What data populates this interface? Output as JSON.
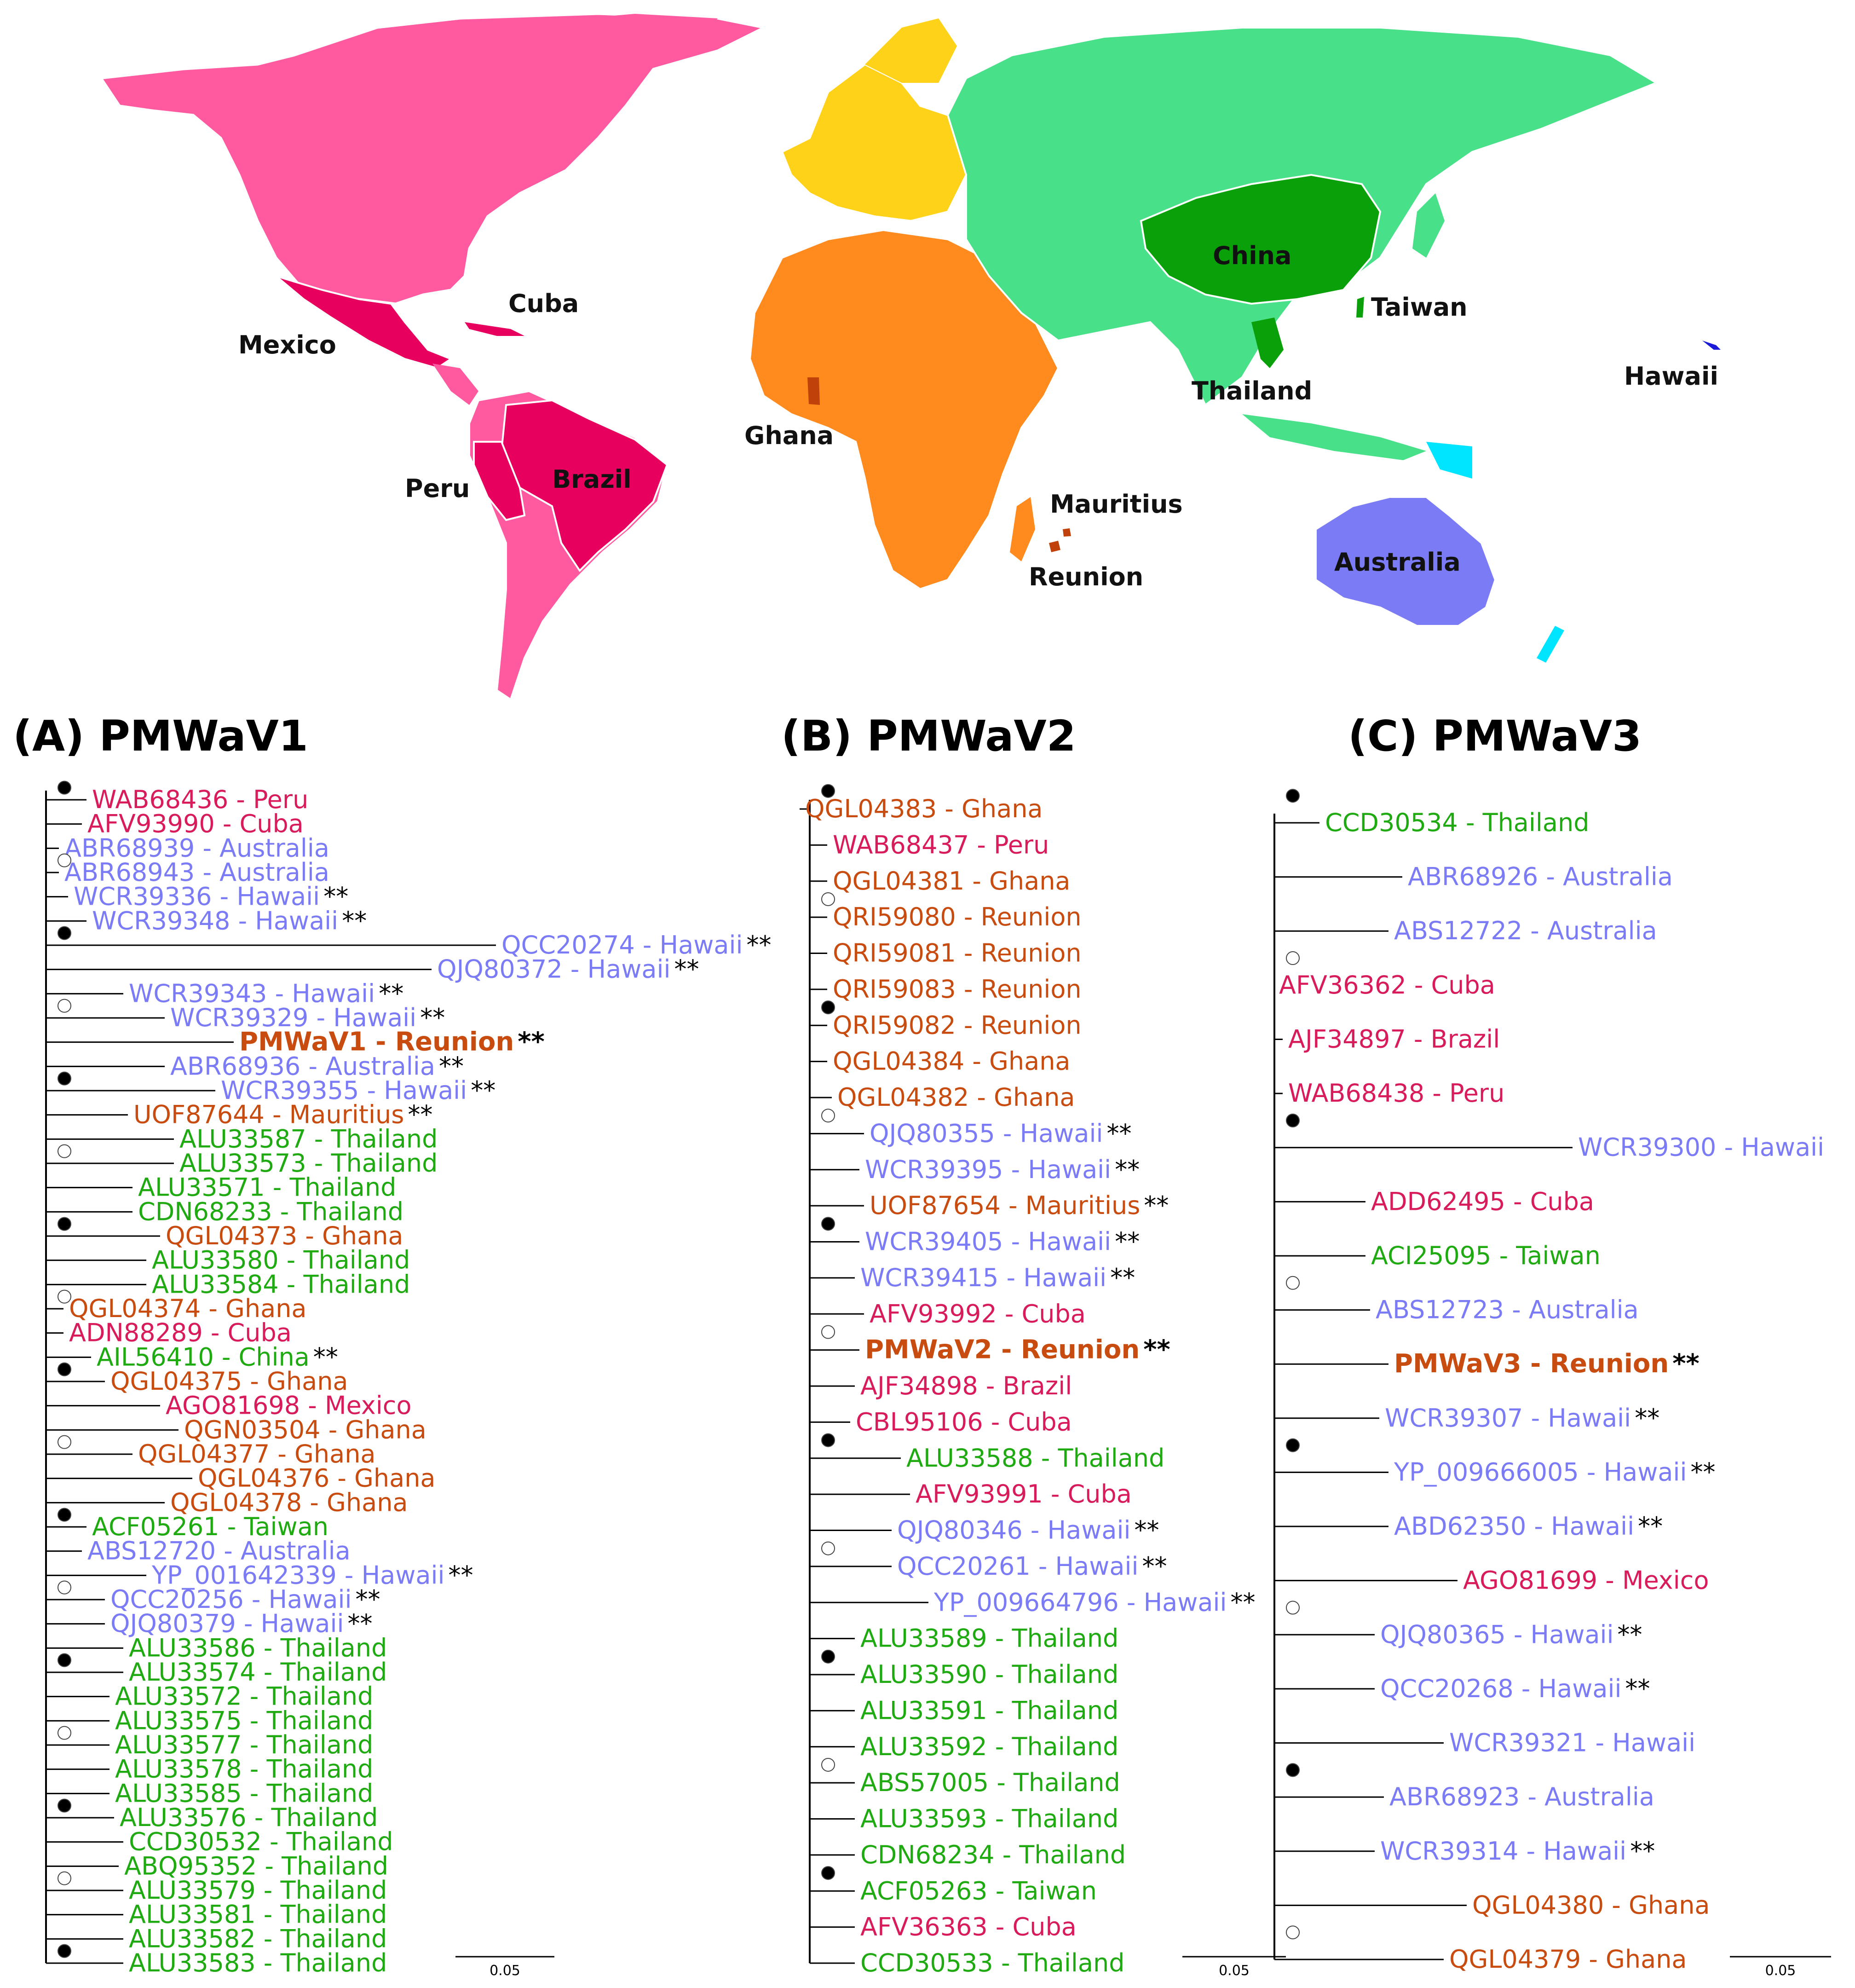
{
  "colors": {
    "Peru": "#d81b5a",
    "Cuba": "#d81b5a",
    "Mexico": "#d81b5a",
    "Brazil": "#d81b5a",
    "Australia": "#7b7cf5",
    "Hawaii": "#7b7cf5",
    "Ghana": "#c84b0f",
    "Mauritius": "#c84b0f",
    "Reunion": "#c84b0f",
    "Thailand": "#1faa12",
    "China": "#1faa12",
    "Taiwan": "#1faa12",
    "map_americas": "#ff5aa0",
    "map_highlight_red": "#e8005e",
    "map_europe": "#ffd21a",
    "map_africa": "#ff8a1e",
    "map_asia": "#48e088",
    "map_highlight_green": "#0aa00a",
    "map_australia": "#7b7cf5",
    "map_islands_cyan": "#00e5ff",
    "map_reunion": "#c0420a"
  },
  "map_labels": {
    "cuba": "Cuba",
    "mexico": "Mexico",
    "peru": "Peru",
    "brazil": "Brazil",
    "ghana": "Ghana",
    "mauritius": "Mauritius",
    "reunion": "Reunion",
    "china": "China",
    "taiwan": "Taiwan",
    "thailand": "Thailand",
    "hawaii": "Hawaii",
    "australia": "Australia"
  },
  "panels": [
    {
      "title": "(A) PMWaV1",
      "scale_label": "0.05",
      "leaves": [
        {
          "label": "WAB68436 - Peru",
          "region": "Peru",
          "mark": "",
          "bold": false
        },
        {
          "label": "AFV93990 - Cuba",
          "region": "Cuba",
          "mark": "",
          "bold": false
        },
        {
          "label": "ABR68939 - Australia",
          "region": "Australia",
          "mark": "",
          "bold": false
        },
        {
          "label": "ABR68943 - Australia",
          "region": "Australia",
          "mark": "",
          "bold": false
        },
        {
          "label": "WCR39336 - Hawaii",
          "region": "Hawaii",
          "mark": "**",
          "bold": false
        },
        {
          "label": "WCR39348 - Hawaii",
          "region": "Hawaii",
          "mark": "**",
          "bold": false
        },
        {
          "label": "QCC20274 - Hawaii",
          "region": "Hawaii",
          "mark": "**",
          "bold": false
        },
        {
          "label": "QJQ80372 - Hawaii",
          "region": "Hawaii",
          "mark": "**",
          "bold": false
        },
        {
          "label": "WCR39343 - Hawaii",
          "region": "Hawaii",
          "mark": "**",
          "bold": false
        },
        {
          "label": "WCR39329 - Hawaii",
          "region": "Hawaii",
          "mark": "**",
          "bold": false
        },
        {
          "label": "PMWaV1 - Reunion",
          "region": "Reunion",
          "mark": "**",
          "bold": true
        },
        {
          "label": "ABR68936 - Australia",
          "region": "Australia",
          "mark": "**",
          "bold": false
        },
        {
          "label": "WCR39355 - Hawaii",
          "region": "Hawaii",
          "mark": "**",
          "bold": false
        },
        {
          "label": "UOF87644 - Mauritius",
          "region": "Mauritius",
          "mark": "**",
          "bold": false
        },
        {
          "label": "ALU33587 - Thailand",
          "region": "Thailand",
          "mark": "",
          "bold": false
        },
        {
          "label": "ALU33573 - Thailand",
          "region": "Thailand",
          "mark": "",
          "bold": false
        },
        {
          "label": "ALU33571 - Thailand",
          "region": "Thailand",
          "mark": "",
          "bold": false
        },
        {
          "label": "CDN68233 - Thailand",
          "region": "Thailand",
          "mark": "",
          "bold": false
        },
        {
          "label": "QGL04373 - Ghana",
          "region": "Ghana",
          "mark": "",
          "bold": false
        },
        {
          "label": "ALU33580 - Thailand",
          "region": "Thailand",
          "mark": "",
          "bold": false
        },
        {
          "label": "ALU33584 - Thailand",
          "region": "Thailand",
          "mark": "",
          "bold": false
        },
        {
          "label": "QGL04374 - Ghana",
          "region": "Ghana",
          "mark": "",
          "bold": false
        },
        {
          "label": "ADN88289 - Cuba",
          "region": "Cuba",
          "mark": "",
          "bold": false
        },
        {
          "label": "AIL56410 - China",
          "region": "China",
          "mark": "**",
          "bold": false
        },
        {
          "label": "QGL04375 - Ghana",
          "region": "Ghana",
          "mark": "",
          "bold": false
        },
        {
          "label": "AGO81698 - Mexico",
          "region": "Mexico",
          "mark": "",
          "bold": false
        },
        {
          "label": "QGN03504 - Ghana",
          "region": "Ghana",
          "mark": "",
          "bold": false
        },
        {
          "label": "QGL04377 - Ghana",
          "region": "Ghana",
          "mark": "",
          "bold": false
        },
        {
          "label": "QGL04376 - Ghana",
          "region": "Ghana",
          "mark": "",
          "bold": false
        },
        {
          "label": "QGL04378 - Ghana",
          "region": "Ghana",
          "mark": "",
          "bold": false
        },
        {
          "label": "ACF05261 - Taiwan",
          "region": "Taiwan",
          "mark": "",
          "bold": false
        },
        {
          "label": "ABS12720 - Australia",
          "region": "Australia",
          "mark": "",
          "bold": false
        },
        {
          "label": "YP_001642339 - Hawaii",
          "region": "Hawaii",
          "mark": "**",
          "bold": false
        },
        {
          "label": "QCC20256 - Hawaii",
          "region": "Hawaii",
          "mark": "**",
          "bold": false
        },
        {
          "label": "QJQ80379 - Hawaii",
          "region": "Hawaii",
          "mark": "**",
          "bold": false
        },
        {
          "label": "ALU33586 - Thailand",
          "region": "Thailand",
          "mark": "",
          "bold": false
        },
        {
          "label": "ALU33574 - Thailand",
          "region": "Thailand",
          "mark": "",
          "bold": false
        },
        {
          "label": "ALU33572 - Thailand",
          "region": "Thailand",
          "mark": "",
          "bold": false
        },
        {
          "label": "ALU33575 - Thailand",
          "region": "Thailand",
          "mark": "",
          "bold": false
        },
        {
          "label": "ALU33577 - Thailand",
          "region": "Thailand",
          "mark": "",
          "bold": false
        },
        {
          "label": "ALU33578 - Thailand",
          "region": "Thailand",
          "mark": "",
          "bold": false
        },
        {
          "label": "ALU33585 - Thailand",
          "region": "Thailand",
          "mark": "",
          "bold": false
        },
        {
          "label": "ALU33576 - Thailand",
          "region": "Thailand",
          "mark": "",
          "bold": false
        },
        {
          "label": "CCD30532 - Thailand",
          "region": "Thailand",
          "mark": "",
          "bold": false
        },
        {
          "label": "ABQ95352 - Thailand",
          "region": "Thailand",
          "mark": "",
          "bold": false
        },
        {
          "label": "ALU33579 - Thailand",
          "region": "Thailand",
          "mark": "",
          "bold": false
        },
        {
          "label": "ALU33581 - Thailand",
          "region": "Thailand",
          "mark": "",
          "bold": false
        },
        {
          "label": "ALU33582 - Thailand",
          "region": "Thailand",
          "mark": "",
          "bold": false
        },
        {
          "label": "ALU33583 - Thailand",
          "region": "Thailand",
          "mark": "",
          "bold": false
        }
      ]
    },
    {
      "title": "(B) PMWaV2",
      "scale_label": "0.05",
      "leaves": [
        {
          "label": "QGL04383 - Ghana",
          "region": "Ghana",
          "mark": "",
          "bold": false
        },
        {
          "label": "WAB68437 - Peru",
          "region": "Peru",
          "mark": "",
          "bold": false
        },
        {
          "label": "QGL04381 - Ghana",
          "region": "Ghana",
          "mark": "",
          "bold": false
        },
        {
          "label": "QRI59080 - Reunion",
          "region": "Reunion",
          "mark": "",
          "bold": false
        },
        {
          "label": "QRI59081 - Reunion",
          "region": "Reunion",
          "mark": "",
          "bold": false
        },
        {
          "label": "QRI59083 - Reunion",
          "region": "Reunion",
          "mark": "",
          "bold": false
        },
        {
          "label": "QRI59082 - Reunion",
          "region": "Reunion",
          "mark": "",
          "bold": false
        },
        {
          "label": "QGL04384 - Ghana",
          "region": "Ghana",
          "mark": "",
          "bold": false
        },
        {
          "label": "QGL04382 - Ghana",
          "region": "Ghana",
          "mark": "",
          "bold": false
        },
        {
          "label": "QJQ80355 - Hawaii",
          "region": "Hawaii",
          "mark": "**",
          "bold": false
        },
        {
          "label": "WCR39395 - Hawaii",
          "region": "Hawaii",
          "mark": "**",
          "bold": false
        },
        {
          "label": "UOF87654 - Mauritius",
          "region": "Mauritius",
          "mark": "**",
          "bold": false
        },
        {
          "label": "WCR39405 - Hawaii",
          "region": "Hawaii",
          "mark": "**",
          "bold": false
        },
        {
          "label": "WCR39415 - Hawaii",
          "region": "Hawaii",
          "mark": "**",
          "bold": false
        },
        {
          "label": "AFV93992 - Cuba",
          "region": "Cuba",
          "mark": "",
          "bold": false
        },
        {
          "label": "PMWaV2 - Reunion",
          "region": "Reunion",
          "mark": "**",
          "bold": true
        },
        {
          "label": "AJF34898 - Brazil",
          "region": "Brazil",
          "mark": "",
          "bold": false
        },
        {
          "label": "CBL95106 - Cuba",
          "region": "Cuba",
          "mark": "",
          "bold": false
        },
        {
          "label": "ALU33588 - Thailand",
          "region": "Thailand",
          "mark": "",
          "bold": false
        },
        {
          "label": "AFV93991 - Cuba",
          "region": "Cuba",
          "mark": "",
          "bold": false
        },
        {
          "label": "QJQ80346 - Hawaii",
          "region": "Hawaii",
          "mark": "**",
          "bold": false
        },
        {
          "label": "QCC20261 - Hawaii",
          "region": "Hawaii",
          "mark": "**",
          "bold": false
        },
        {
          "label": "YP_009664796 - Hawaii",
          "region": "Hawaii",
          "mark": "**",
          "bold": false
        },
        {
          "label": "ALU33589 - Thailand",
          "region": "Thailand",
          "mark": "",
          "bold": false
        },
        {
          "label": "ALU33590 - Thailand",
          "region": "Thailand",
          "mark": "",
          "bold": false
        },
        {
          "label": "ALU33591 - Thailand",
          "region": "Thailand",
          "mark": "",
          "bold": false
        },
        {
          "label": "ALU33592 - Thailand",
          "region": "Thailand",
          "mark": "",
          "bold": false
        },
        {
          "label": "ABS57005 - Thailand",
          "region": "Thailand",
          "mark": "",
          "bold": false
        },
        {
          "label": "ALU33593 - Thailand",
          "region": "Thailand",
          "mark": "",
          "bold": false
        },
        {
          "label": "CDN68234 - Thailand",
          "region": "Thailand",
          "mark": "",
          "bold": false
        },
        {
          "label": "ACF05263 - Taiwan",
          "region": "Taiwan",
          "mark": "",
          "bold": false
        },
        {
          "label": "AFV36363 - Cuba",
          "region": "Cuba",
          "mark": "",
          "bold": false
        },
        {
          "label": "CCD30533 - Thailand",
          "region": "Thailand",
          "mark": "",
          "bold": false
        }
      ]
    },
    {
      "title": "(C) PMWaV3",
      "scale_label": "0.05",
      "leaves": [
        {
          "label": "CCD30534 - Thailand",
          "region": "Thailand",
          "mark": "",
          "bold": false
        },
        {
          "label": "ABR68926 - Australia",
          "region": "Australia",
          "mark": "",
          "bold": false
        },
        {
          "label": "ABS12722 - Australia",
          "region": "Australia",
          "mark": "",
          "bold": false
        },
        {
          "label": "AFV36362 - Cuba",
          "region": "Cuba",
          "mark": "",
          "bold": false
        },
        {
          "label": "AJF34897 - Brazil",
          "region": "Brazil",
          "mark": "",
          "bold": false
        },
        {
          "label": "WAB68438 - Peru",
          "region": "Peru",
          "mark": "",
          "bold": false
        },
        {
          "label": "WCR39300 - Hawaii",
          "region": "Hawaii",
          "mark": "",
          "bold": false
        },
        {
          "label": "ADD62495 - Cuba",
          "region": "Cuba",
          "mark": "",
          "bold": false
        },
        {
          "label": "ACI25095 - Taiwan",
          "region": "Taiwan",
          "mark": "",
          "bold": false
        },
        {
          "label": "ABS12723 - Australia",
          "region": "Australia",
          "mark": "",
          "bold": false
        },
        {
          "label": "PMWaV3 - Reunion",
          "region": "Reunion",
          "mark": "**",
          "bold": true
        },
        {
          "label": "WCR39307 - Hawaii",
          "region": "Hawaii",
          "mark": "**",
          "bold": false
        },
        {
          "label": "YP_009666005 - Hawaii",
          "region": "Hawaii",
          "mark": "**",
          "bold": false
        },
        {
          "label": "ABD62350 - Hawaii",
          "region": "Hawaii",
          "mark": "**",
          "bold": false
        },
        {
          "label": "AGO81699 - Mexico",
          "region": "Mexico",
          "mark": "",
          "bold": false
        },
        {
          "label": "QJQ80365 - Hawaii",
          "region": "Hawaii",
          "mark": "**",
          "bold": false
        },
        {
          "label": "QCC20268 - Hawaii",
          "region": "Hawaii",
          "mark": "**",
          "bold": false
        },
        {
          "label": "WCR39321 - Hawaii",
          "region": "Hawaii",
          "mark": "",
          "bold": false
        },
        {
          "label": "ABR68923 - Australia",
          "region": "Australia",
          "mark": "",
          "bold": false
        },
        {
          "label": "WCR39314 - Hawaii",
          "region": "Hawaii",
          "mark": "**",
          "bold": false
        },
        {
          "label": "QGL04380 - Ghana",
          "region": "Ghana",
          "mark": "",
          "bold": false
        },
        {
          "label": "QGL04379 - Ghana",
          "region": "Ghana",
          "mark": "",
          "bold": false
        }
      ]
    }
  ]
}
